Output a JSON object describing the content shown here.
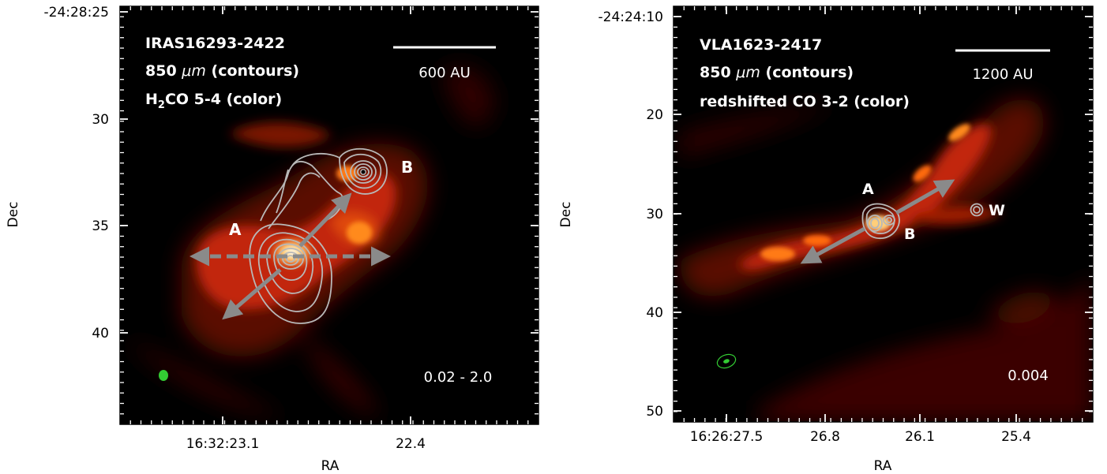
{
  "left": {
    "source": "IRAS16293-2422",
    "cont_prefix": "850 ",
    "cont_unit": "μm",
    "cont_suffix": " (contours)",
    "line_prefix": "H",
    "line_sub": "2",
    "line_suffix": "CO 5-4 (color)",
    "scale_label": "600 AU",
    "range_label": "0.02 - 2.0",
    "label_A": "A",
    "label_B": "B",
    "dec_ticks": [
      "-24:28:25",
      "30",
      "35",
      "40"
    ],
    "ra_ticks": [
      "16:32:23.1",
      "22.4"
    ],
    "ylabel": "Dec",
    "xlabel": "RA"
  },
  "right": {
    "source": "VLA1623-2417",
    "cont_prefix": "850 ",
    "cont_unit": "μm",
    "cont_suffix": " (contours)",
    "line_label": "redshifted CO 3-2 (color)",
    "scale_label": "1200 AU",
    "range_label": "0.004",
    "label_A": "A",
    "label_B": "B",
    "label_W": "W",
    "dec_ticks": [
      "-24:24:10",
      "20",
      "30",
      "40",
      "50"
    ],
    "ra_ticks": [
      "16:26:27.5",
      "26.8",
      "26.1",
      "25.4"
    ],
    "ylabel": "Dec",
    "xlabel": "RA"
  },
  "colors": {
    "background": "#000000",
    "emission_hot": "#ff8a1a",
    "emission_mid": "#c2260a",
    "emission_dim": "#5a0a02",
    "contours": "#b8b8b8",
    "arrows": "#8a8a8a",
    "beam": "#33cc33",
    "text": "#ffffff"
  }
}
